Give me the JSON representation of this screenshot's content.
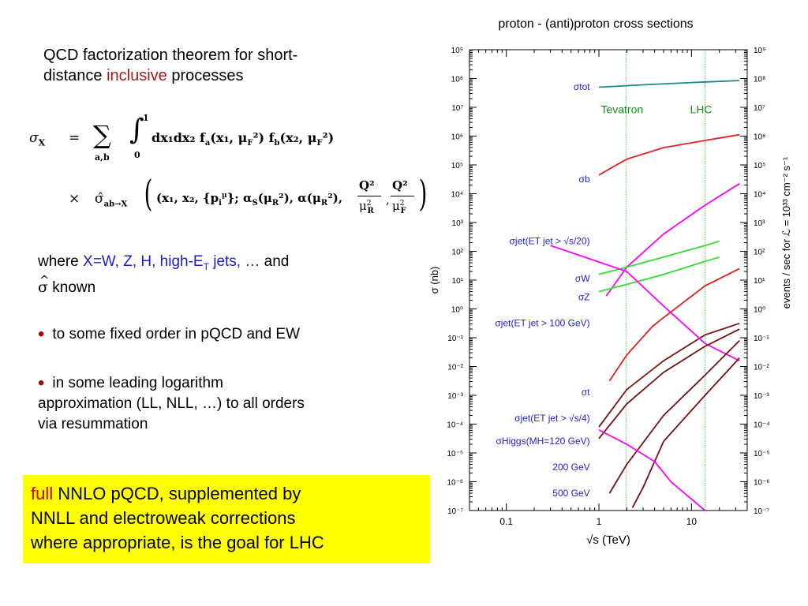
{
  "left_text": {
    "heading_line1": "QCD factorization theorem for short-",
    "heading_line2_a": "distance ",
    "heading_line2_red": "inclusive",
    "heading_line2_b": " processes",
    "where_a": "where ",
    "where_blue": "X=W, Z, H, high-E",
    "where_sub": "T",
    "where_blue2": " jets, …",
    "where_b": " and",
    "sigma_hat": "σ",
    "hat_mark": "^",
    "known": " known",
    "bullet1": "to some fixed order in pQCD and EW",
    "bullet2_line1": "in some leading logarithm",
    "bullet2_line2": "approximation (LL, NLL, …) to all orders",
    "bullet2_line3": "via resummation",
    "bullet_symbol": "•"
  },
  "formula": {
    "line1_lhs": "σ",
    "line1_lhs_sub": "X",
    "equals": "=",
    "sum": "∑",
    "sum_sub": "a,b",
    "integral": "∫",
    "int_upper": "1",
    "int_lower": "0",
    "line1_rhs": "dx₁dx₂ f",
    "f_a_sub": "a",
    "f_a_args": "(x₁, μ",
    "muF_sub": "F",
    "f_mid": "²) f",
    "f_b_sub": "b",
    "f_b_args": "(x₂, μ",
    "f_end": "²)",
    "times": "×",
    "line2_hat_sigma": "σ̂",
    "line2_sub": "ab→X",
    "line2_body": "(x₁, x₂, {p",
    "line2_pi_sub": "i",
    "line2_pi_sup": "μ",
    "line2_mid": "}; α",
    "alpha_sub": "S",
    "line2_mid2": "(μ",
    "muR_sub": "R",
    "line2_mid3": "²), α(μ",
    "line2_mid4": "²),",
    "frac_num": "Q²",
    "frac_den1": "μ",
    "frac_den1_sub": "R",
    "frac_den_sup": "2",
    "frac_den2_sub": "F",
    "line2_end": ")"
  },
  "yellow_box": {
    "red_word": "full",
    "line1_rest": " NNLO pQCD, supplemented by",
    "line2": "NNLL and electroweak corrections",
    "line3": "where appropriate, is the goal for LHC"
  },
  "chart_data": {
    "type": "line",
    "title": "proton - (anti)proton cross sections",
    "xlabel": "√s (TeV)",
    "ylabel": "σ (nb)",
    "ylabel_right": "events / sec for ℒ = 10³³ cm⁻² s⁻¹",
    "xscale": "log",
    "yscale": "log",
    "xlim": [
      0.04,
      40
    ],
    "ylim_exp": [
      -7,
      9
    ],
    "x_ticks": [
      {
        "v": 0.1,
        "label": "0.1"
      },
      {
        "v": 1,
        "label": "1"
      },
      {
        "v": 10,
        "label": "10"
      }
    ],
    "y_tick_labels": [
      "10⁻⁷",
      "10⁻⁶",
      "10⁻⁵",
      "10⁻⁴",
      "10⁻³",
      "10⁻²",
      "10⁻¹",
      "10⁰",
      "10¹",
      "10²",
      "10³",
      "10⁴",
      "10⁵",
      "10⁶",
      "10⁷",
      "10⁸",
      "10⁹"
    ],
    "y_tick_exps": [
      -7,
      -6,
      -5,
      -4,
      -3,
      -2,
      -1,
      0,
      1,
      2,
      3,
      4,
      5,
      6,
      7,
      8,
      9
    ],
    "vlines": [
      {
        "x": 1.96,
        "label": "Tevatron"
      },
      {
        "x": 14,
        "label": "LHC"
      }
    ],
    "vline_label_y_exp": 6.8,
    "series": [
      {
        "name": "σtot",
        "color": "#178a8a",
        "label_y_exp": 7.6,
        "points": [
          [
            1,
            7.7
          ],
          [
            3,
            7.78
          ],
          [
            10,
            7.86
          ],
          [
            33,
            7.93
          ]
        ]
      },
      {
        "name": "σb",
        "color": "#e02020",
        "label_y_exp": 4.4,
        "points": [
          [
            1,
            4.65
          ],
          [
            2,
            5.2
          ],
          [
            5,
            5.6
          ],
          [
            14,
            5.85
          ],
          [
            33,
            6.05
          ]
        ]
      },
      {
        "name": "σjet(ET jet > √s/20)",
        "color": "#ff00ff",
        "label_y_exp": 2.25,
        "points": [
          [
            1.2,
            0.45
          ],
          [
            2,
            1.45
          ],
          [
            5,
            2.6
          ],
          [
            14,
            3.6
          ],
          [
            33,
            4.35
          ]
        ]
      },
      {
        "name": "σW",
        "color": "#33dd33",
        "label_y_exp": 0.95,
        "points": [
          [
            1,
            1.2
          ],
          [
            2,
            1.45
          ],
          [
            5,
            1.8
          ],
          [
            14,
            2.2
          ],
          [
            20,
            2.35
          ]
        ]
      },
      {
        "name": "σZ",
        "color": "#33dd33",
        "label_y_exp": 0.3,
        "points": [
          [
            1,
            0.6
          ],
          [
            2,
            0.85
          ],
          [
            5,
            1.2
          ],
          [
            14,
            1.65
          ],
          [
            20,
            1.8
          ]
        ]
      },
      {
        "name": "σjet(ET jet > 100 GeV)",
        "color": "#e02020",
        "label_y_exp": -0.6,
        "points": [
          [
            1.3,
            -2.5
          ],
          [
            2,
            -1.6
          ],
          [
            3.8,
            -0.6
          ],
          [
            5,
            -0.3
          ],
          [
            14,
            0.8
          ],
          [
            33,
            1.4
          ]
        ]
      },
      {
        "name": "σt",
        "color": "#7a1010",
        "label_y_exp": -3.0,
        "points": [
          [
            1,
            -4.1
          ],
          [
            2,
            -2.8
          ],
          [
            5,
            -1.8
          ],
          [
            14,
            -0.9
          ],
          [
            33,
            -0.5
          ]
        ]
      },
      {
        "name": "σjet(ET jet > √s/4)",
        "color": "#ff00ff",
        "label_y_exp": -3.9,
        "points": [
          [
            0.3,
            2.2
          ],
          [
            2,
            1.3
          ],
          [
            5,
            0.1
          ],
          [
            14,
            -1.2
          ],
          [
            33,
            -1.8
          ]
        ]
      },
      {
        "name": "σHiggs(MH=120 GeV)",
        "color": "#7a1010",
        "label_y_exp": -4.7,
        "points": [
          [
            1,
            -4.5
          ],
          [
            2,
            -3.3
          ],
          [
            5,
            -2.2
          ],
          [
            14,
            -1.3
          ],
          [
            33,
            -0.7
          ]
        ]
      },
      {
        "name": "200 GeV",
        "color": "#7a1010",
        "label_y_exp": -5.6,
        "points": [
          [
            1.3,
            -6.4
          ],
          [
            2,
            -5.4
          ],
          [
            5,
            -3.7
          ],
          [
            14,
            -2.3
          ],
          [
            33,
            -1.1
          ]
        ]
      },
      {
        "name": "500 GeV",
        "color": "#7a1010",
        "label_y_exp": -6.5,
        "points": [
          [
            2.3,
            -6.9
          ],
          [
            3,
            -6.2
          ],
          [
            5,
            -4.6
          ],
          [
            14,
            -3.0
          ],
          [
            33,
            -1.7
          ]
        ]
      },
      {
        "name": "σjet(ET jet > √s/4) low",
        "color": "#ff00ff",
        "label_y_exp": null,
        "points": [
          [
            1,
            -4.2
          ],
          [
            2,
            -4.7
          ],
          [
            4,
            -5.3
          ],
          [
            6,
            -6.0
          ],
          [
            14,
            -7.0
          ]
        ]
      }
    ]
  }
}
